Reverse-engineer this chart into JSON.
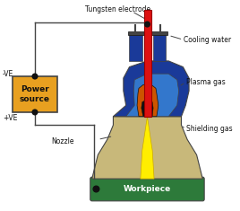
{
  "labels": {
    "tungsten_electrode": "Tungsten electrode",
    "cooling_water": "Cooling water",
    "plasma_gas": "Plasma gas",
    "shielding_gas": "Shielding gas",
    "nozzle": "Nozzle",
    "power_source": "Power\nsource",
    "workpiece": "Workpiece",
    "neg_ve": "-VE",
    "pos_ve": "+VE"
  },
  "colors": {
    "electrode_red": "#dd1111",
    "blue_body": "#1a3a99",
    "light_blue": "#3377cc",
    "orange_inner": "#cc5500",
    "tan_nozzle": "#c8b87a",
    "yellow_flame": "#ffee00",
    "yellow_flame2": "#aacc00",
    "green_workpiece": "#2d7a3a",
    "power_source_yellow": "#e8a020",
    "black": "#000000",
    "white": "#ffffff",
    "dark_gray": "#444444",
    "mid_gray": "#888888",
    "near_black": "#111111"
  }
}
